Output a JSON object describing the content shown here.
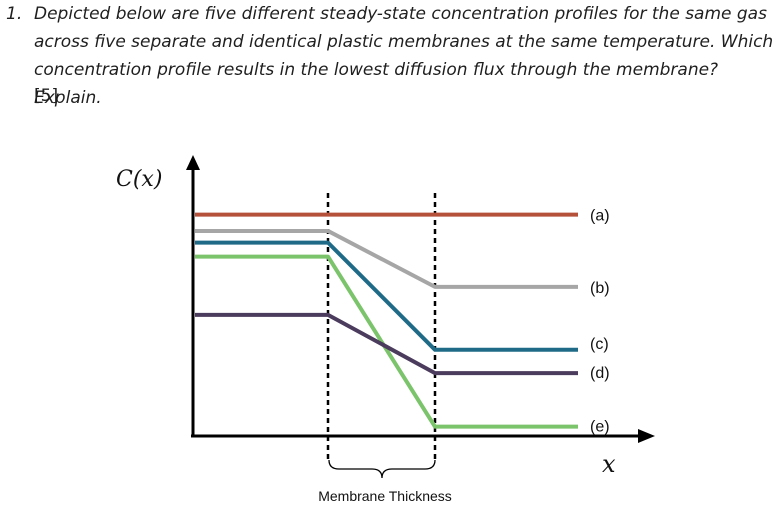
{
  "question": {
    "number": "1.",
    "text": "Depicted below are five different steady-state concentration profiles for the same gas across five separate and identical plastic membranes at the same temperature. Which concentration profile results in the lowest diffusion flux through the membrane? Explain.",
    "marks": "[5]"
  },
  "figure": {
    "y_axis_label": "C(x)",
    "x_axis_label": "x",
    "bracket_label": "Membrane Thickness",
    "profiles": [
      {
        "label": "(a)",
        "color": "#b5503b",
        "left_level": 0.95,
        "right_level": 0.95
      },
      {
        "label": "(b)",
        "color": "#a6a6a6",
        "left_level": 0.88,
        "right_level": 0.64
      },
      {
        "label": "(c)",
        "color": "#1f6b87",
        "left_level": 0.83,
        "right_level": 0.37
      },
      {
        "label": "(d)",
        "color": "#4b3b5c",
        "left_level": 0.52,
        "right_level": 0.27
      },
      {
        "label": "(e)",
        "color": "#7cc46c",
        "left_level": 0.77,
        "right_level": 0.04
      }
    ]
  }
}
